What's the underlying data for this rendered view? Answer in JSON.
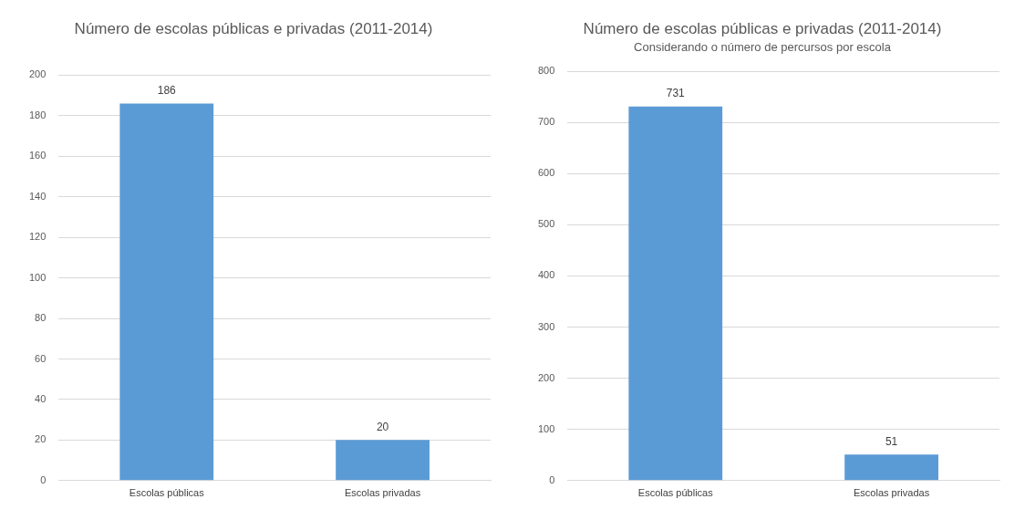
{
  "chart_data": [
    {
      "type": "bar",
      "title": "Número de escolas públicas e privadas (2011-2014)",
      "categories": [
        "Escolas públicas",
        "Escolas privadas"
      ],
      "values": [
        186,
        20
      ],
      "color": "#5b9bd5",
      "ylim": [
        0,
        200
      ],
      "yticks": [
        0,
        20,
        40,
        60,
        80,
        100,
        120,
        140,
        160,
        180,
        200
      ],
      "grid": "y",
      "data_labels": true
    },
    {
      "type": "bar",
      "title": "Número de escolas públicas e privadas (2011-2014)",
      "subtitle": "Considerando o número de percursos por escola",
      "categories": [
        "Escolas públicas",
        "Escolas privadas"
      ],
      "values": [
        731,
        51
      ],
      "color": "#5b9bd5",
      "ylim": [
        0,
        800
      ],
      "yticks": [
        0,
        100,
        200,
        300,
        400,
        500,
        600,
        700,
        800
      ],
      "grid": "y",
      "data_labels": true
    }
  ]
}
